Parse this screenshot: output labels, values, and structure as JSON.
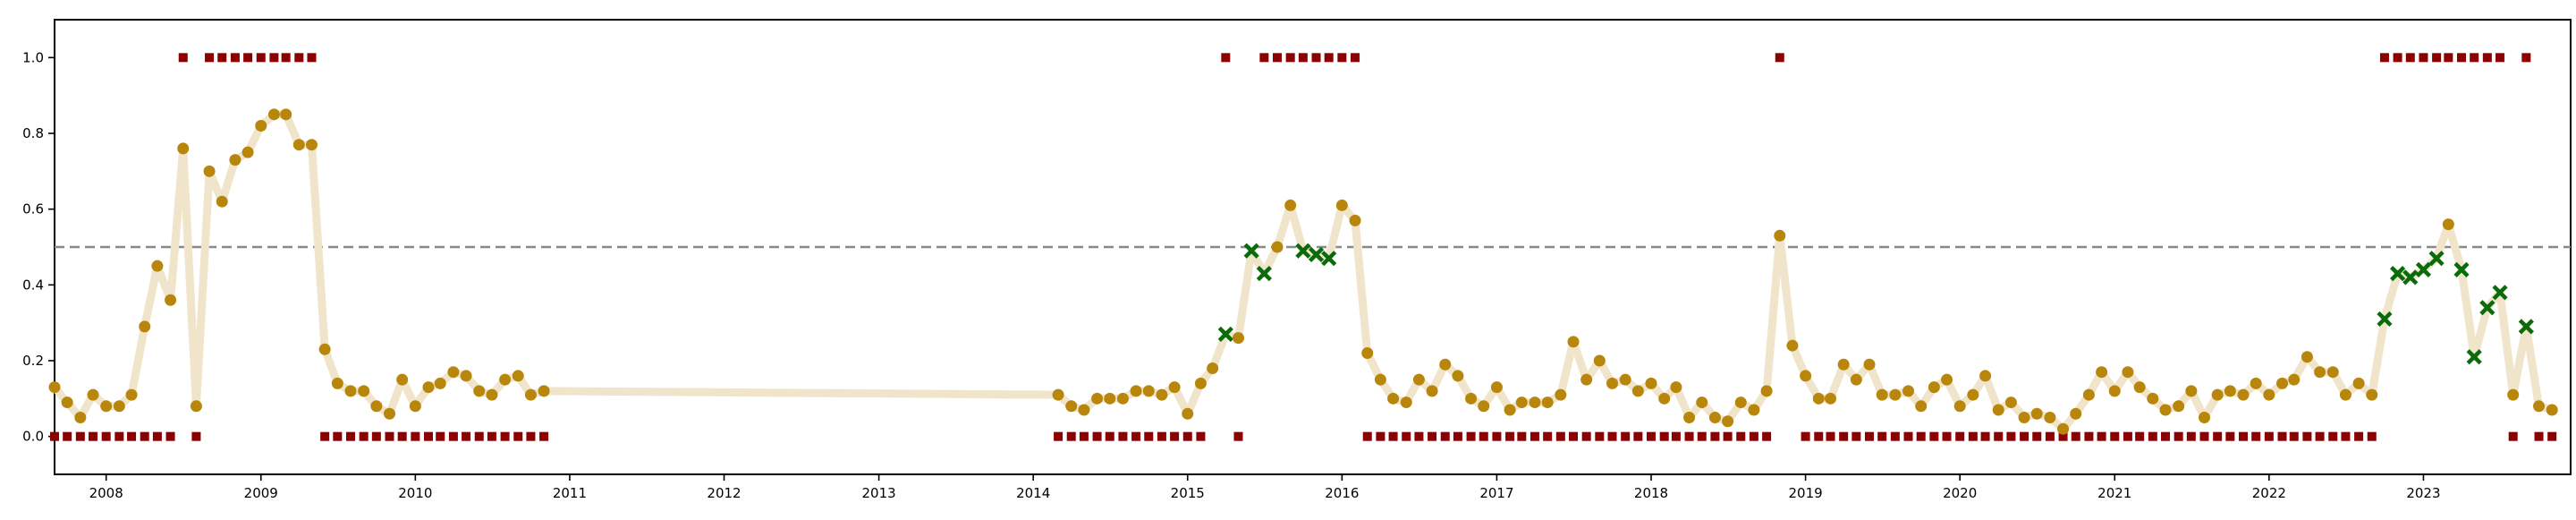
{
  "chart_data": {
    "type": "scatter",
    "title": "",
    "xlabel": "",
    "ylabel": "",
    "xlim": [
      "2007-09-01",
      "2023-12-15"
    ],
    "ylim": [
      -0.1,
      1.1
    ],
    "x_ticks": [
      "2008",
      "2009",
      "2010",
      "2011",
      "2012",
      "2013",
      "2014",
      "2015",
      "2016",
      "2017",
      "2018",
      "2019",
      "2020",
      "2021",
      "2022",
      "2023"
    ],
    "y_ticks": [
      "0.0",
      "0.2",
      "0.4",
      "0.6",
      "0.8",
      "1.0"
    ],
    "threshold": 0.5,
    "grid": false,
    "colors": {
      "line": "#f0e4cb",
      "score_point": "#b8860b",
      "cross": "#0a6b0a",
      "label": "#8b0000",
      "threshold": "#888888",
      "axes": "#000000"
    },
    "series": [
      {
        "x": [
          "2007-09",
          "2007-10",
          "2007-11",
          "2007-12",
          "2008-01",
          "2008-02",
          "2008-03",
          "2008-04",
          "2008-05",
          "2008-06",
          "2008-07",
          "2008-08",
          "2008-09",
          "2008-10",
          "2008-11",
          "2008-12",
          "2009-01",
          "2009-02",
          "2009-03",
          "2009-04",
          "2009-05",
          "2009-06",
          "2009-07",
          "2009-08",
          "2009-09",
          "2009-10",
          "2009-11",
          "2009-12",
          "2010-01",
          "2010-02",
          "2010-03",
          "2010-04",
          "2010-05",
          "2010-06",
          "2010-07",
          "2010-08",
          "2010-09",
          "2010-10",
          "2010-11",
          "2014-03",
          "2014-04",
          "2014-05",
          "2014-06",
          "2014-07",
          "2014-08",
          "2014-09",
          "2014-10",
          "2014-11",
          "2014-12",
          "2015-01",
          "2015-02",
          "2015-03",
          "2015-04",
          "2015-05",
          "2015-06",
          "2015-07",
          "2015-08",
          "2015-09",
          "2015-10",
          "2015-11",
          "2015-12",
          "2016-01",
          "2016-02",
          "2016-03",
          "2016-04",
          "2016-05",
          "2016-06",
          "2016-07",
          "2016-08",
          "2016-09",
          "2016-10",
          "2016-11",
          "2016-12",
          "2017-01",
          "2017-02",
          "2017-03",
          "2017-04",
          "2017-05",
          "2017-06",
          "2017-07",
          "2017-08",
          "2017-09",
          "2017-10",
          "2017-11",
          "2017-12",
          "2018-01",
          "2018-02",
          "2018-03",
          "2018-04",
          "2018-05",
          "2018-06",
          "2018-07",
          "2018-08",
          "2018-09",
          "2018-10",
          "2018-11",
          "2018-12",
          "2019-01",
          "2019-02",
          "2019-03",
          "2019-04",
          "2019-05",
          "2019-06",
          "2019-07",
          "2019-08",
          "2019-09",
          "2019-10",
          "2019-11",
          "2019-12",
          "2020-01",
          "2020-02",
          "2020-03",
          "2020-04",
          "2020-05",
          "2020-06",
          "2020-07",
          "2020-08",
          "2020-09",
          "2020-10",
          "2020-11",
          "2020-12",
          "2021-01",
          "2021-02",
          "2021-03",
          "2021-04",
          "2021-05",
          "2021-06",
          "2021-07",
          "2021-08",
          "2021-09",
          "2021-10",
          "2021-11",
          "2021-12",
          "2022-01",
          "2022-02",
          "2022-03",
          "2022-04",
          "2022-05",
          "2022-06",
          "2022-07",
          "2022-08",
          "2022-09",
          "2022-10",
          "2022-11",
          "2022-12",
          "2023-01",
          "2023-02",
          "2023-03",
          "2023-04",
          "2023-05",
          "2023-06",
          "2023-07",
          "2023-08",
          "2023-09",
          "2023-10",
          "2023-11",
          "2023-12"
        ],
        "score": [
          0.13,
          0.09,
          0.05,
          0.11,
          0.08,
          0.08,
          0.11,
          0.29,
          0.45,
          0.36,
          0.76,
          0.08,
          0.7,
          0.62,
          0.73,
          0.75,
          0.82,
          0.85,
          0.85,
          0.77,
          0.77,
          0.23,
          0.14,
          0.12,
          0.12,
          0.08,
          0.06,
          0.15,
          0.08,
          0.13,
          0.14,
          0.17,
          0.16,
          0.12,
          0.11,
          0.15,
          0.16,
          0.11,
          0.12,
          0.11,
          0.08,
          0.07,
          0.1,
          0.1,
          0.1,
          0.12,
          0.12,
          0.11,
          0.13,
          0.06,
          0.14,
          0.18,
          0.27,
          0.26,
          0.49,
          0.43,
          0.5,
          0.61,
          0.49,
          0.48,
          0.47,
          0.61,
          0.57,
          0.22,
          0.15,
          0.1,
          0.09,
          0.15,
          0.12,
          0.19,
          0.16,
          0.1,
          0.08,
          0.13,
          0.07,
          0.09,
          0.09,
          0.09,
          0.11,
          0.25,
          0.15,
          0.2,
          0.14,
          0.15,
          0.12,
          0.14,
          0.1,
          0.13,
          0.05,
          0.09,
          0.05,
          0.04,
          0.09,
          0.07,
          0.12,
          0.53,
          0.24,
          0.16,
          0.1,
          0.1,
          0.19,
          0.15,
          0.19,
          0.11,
          0.11,
          0.12,
          0.08,
          0.13,
          0.15,
          0.08,
          0.11,
          0.16,
          0.07,
          0.09,
          0.05,
          0.06,
          0.05,
          0.02,
          0.06,
          0.11,
          0.17,
          0.12,
          0.17,
          0.13,
          0.1,
          0.07,
          0.08,
          0.12,
          0.05,
          0.11,
          0.12,
          0.11,
          0.14,
          0.11,
          0.14,
          0.15,
          0.21,
          0.17,
          0.17,
          0.11,
          0.14,
          0.11,
          0.31,
          0.43,
          0.42,
          0.44,
          0.47,
          0.56,
          0.44,
          0.21,
          0.34,
          0.38,
          0.11,
          0.29,
          0.08,
          0.07
        ],
        "label": [
          0,
          0,
          0,
          0,
          0,
          0,
          0,
          0,
          0,
          0,
          1,
          0,
          1,
          1,
          1,
          1,
          1,
          1,
          1,
          1,
          1,
          0,
          0,
          0,
          0,
          0,
          0,
          0,
          0,
          0,
          0,
          0,
          0,
          0,
          0,
          0,
          0,
          0,
          0,
          0,
          0,
          0,
          0,
          0,
          0,
          0,
          0,
          0,
          0,
          0,
          0,
          0,
          1,
          0,
          1,
          1,
          1,
          1,
          1,
          1,
          1,
          1,
          1,
          0,
          0,
          0,
          0,
          0,
          0,
          0,
          0,
          0,
          0,
          0,
          0,
          0,
          0,
          0,
          0,
          0,
          0,
          0,
          0,
          0,
          0,
          0,
          0,
          0,
          0,
          0,
          0,
          0,
          0,
          0,
          0,
          1,
          0,
          0,
          0,
          0,
          0,
          0,
          0,
          0,
          0,
          0,
          0,
          0,
          0,
          0,
          0,
          0,
          0,
          0,
          0,
          0,
          0,
          0,
          0,
          0,
          0,
          0,
          0,
          0,
          0,
          0,
          0,
          0,
          0,
          0,
          0,
          0,
          0,
          0,
          0,
          0,
          0,
          0,
          0,
          0,
          0,
          0,
          1,
          1,
          1,
          1,
          1,
          1,
          1,
          1,
          1,
          1,
          0,
          1,
          0,
          0
        ],
        "label_shown": [
          1,
          1,
          1,
          1,
          1,
          1,
          1,
          1,
          1,
          1,
          1,
          1,
          1,
          1,
          1,
          1,
          1,
          1,
          1,
          1,
          1,
          1,
          1,
          1,
          1,
          1,
          1,
          1,
          1,
          1,
          1,
          1,
          1,
          1,
          1,
          1,
          1,
          1,
          1,
          1,
          1,
          1,
          1,
          1,
          1,
          1,
          1,
          1,
          1,
          1,
          1,
          0,
          1,
          1,
          0,
          1,
          1,
          1,
          1,
          1,
          1,
          1,
          1,
          1,
          1,
          1,
          1,
          1,
          1,
          1,
          1,
          1,
          1,
          1,
          1,
          1,
          1,
          1,
          1,
          1,
          1,
          1,
          1,
          1,
          1,
          1,
          1,
          1,
          1,
          1,
          1,
          1,
          1,
          1,
          1,
          1,
          0,
          1,
          1,
          1,
          1,
          1,
          1,
          1,
          1,
          1,
          1,
          1,
          1,
          1,
          1,
          1,
          1,
          1,
          1,
          1,
          1,
          1,
          1,
          1,
          1,
          1,
          1,
          1,
          1,
          1,
          1,
          1,
          1,
          1,
          1,
          1,
          1,
          1,
          1,
          1,
          1,
          1,
          1,
          1,
          1,
          1,
          1,
          1,
          1,
          1,
          1,
          1,
          1,
          1,
          1,
          1,
          1,
          1,
          1,
          1,
          1
        ]
      }
    ]
  }
}
